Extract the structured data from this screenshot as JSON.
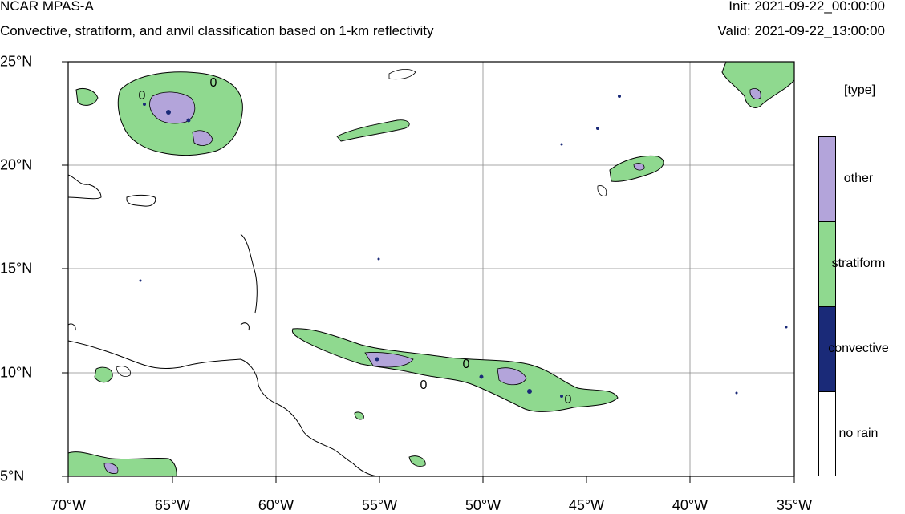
{
  "header": {
    "title": "NCAR MPAS-A",
    "subtitle": "Convective, stratiform, and anvil classification based on 1-km reflectivity",
    "init": "Init: 2021-09-22_00:00:00",
    "valid": "Valid: 2021-09-22_13:00:00"
  },
  "axes": {
    "x_ticks": [
      "70°W",
      "65°W",
      "60°W",
      "55°W",
      "50°W",
      "45°W",
      "40°W",
      "35°W"
    ],
    "y_ticks": [
      "25°N",
      "20°N",
      "15°N",
      "10°N",
      "5°N"
    ]
  },
  "legend": {
    "title": "[type]",
    "items": [
      {
        "label": "other",
        "color": "#b3a4da"
      },
      {
        "label": "stratiform",
        "color": "#8fd98f"
      },
      {
        "label": "convective",
        "color": "#1a2a78"
      },
      {
        "label": "no rain",
        "color": "#ffffff"
      }
    ]
  },
  "contour_labels": [
    "0",
    "0",
    "0",
    "0",
    "0"
  ],
  "colors": {
    "other": "#b3a4da",
    "stratiform": "#8fd98f",
    "convective": "#1a2a78"
  }
}
